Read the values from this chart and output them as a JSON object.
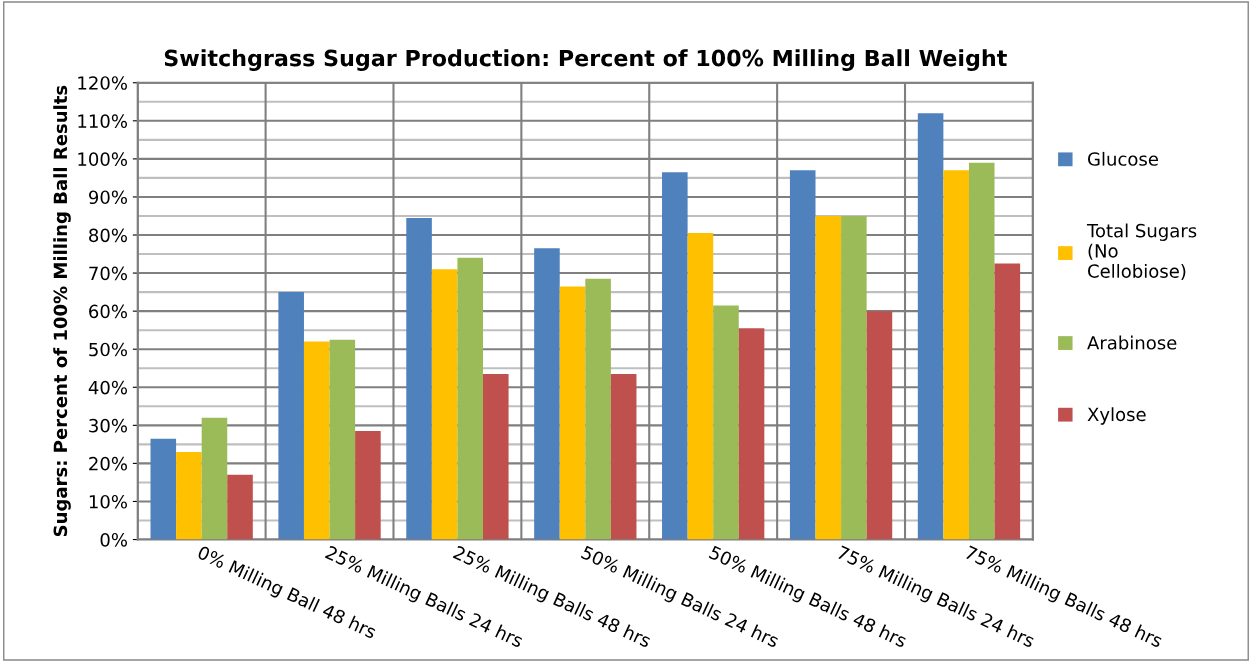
{
  "chart_data": {
    "type": "bar",
    "title": "Switchgrass Sugar Production: Percent of 100% Milling Ball Weight",
    "ylabel": "Sugars: Percent of 100% Milling Ball Results",
    "categories": [
      "0% Milling Ball 48 hrs",
      "25% Milling Balls 24 hrs",
      "25% Milling Balls 48 hrs",
      "50% Milling Balls 24 hrs",
      "50% Milling Balls 48 hrs",
      "75% Milling Balls 24 hrs",
      "75% Milling Balls 48 hrs"
    ],
    "series": [
      {
        "name": "Glucose",
        "color": "#4f81bd",
        "values": [
          26.5,
          65,
          84.5,
          76.5,
          96.5,
          97,
          112
        ]
      },
      {
        "name": "Total Sugars (No Cellobiose)",
        "color": "#ffc000",
        "values": [
          23,
          52,
          71,
          66.5,
          80.5,
          85,
          97
        ]
      },
      {
        "name": "Arabinose",
        "color": "#9bbb59",
        "values": [
          32,
          52.5,
          74,
          68.5,
          61.5,
          85,
          99
        ]
      },
      {
        "name": "Xylose",
        "color": "#c0504d",
        "values": [
          17,
          28.5,
          43.5,
          43.5,
          55.5,
          60,
          72.5
        ]
      }
    ],
    "ylim": [
      0,
      120
    ],
    "yticks": [
      {
        "value": 0,
        "label": "0%"
      },
      {
        "value": 5,
        "label": null
      },
      {
        "value": 10,
        "label": "10%"
      },
      {
        "value": 15,
        "label": null
      },
      {
        "value": 20,
        "label": "20%"
      },
      {
        "value": 25,
        "label": null
      },
      {
        "value": 30,
        "label": "30%"
      },
      {
        "value": 35,
        "label": null
      },
      {
        "value": 40,
        "label": "40%"
      },
      {
        "value": 45,
        "label": null
      },
      {
        "value": 50,
        "label": "50%"
      },
      {
        "value": 55,
        "label": null
      },
      {
        "value": 60,
        "label": "60%"
      },
      {
        "value": 65,
        "label": null
      },
      {
        "value": 70,
        "label": "70%"
      },
      {
        "value": 75,
        "label": null
      },
      {
        "value": 80,
        "label": "80%"
      },
      {
        "value": 85,
        "label": null
      },
      {
        "value": 90,
        "label": "90%"
      },
      {
        "value": 95,
        "label": null
      },
      {
        "value": 100,
        "label": "100%"
      },
      {
        "value": 105,
        "label": null
      },
      {
        "value": 110,
        "label": "110%"
      },
      {
        "value": 115,
        "label": null
      },
      {
        "value": 120,
        "label": "120%"
      }
    ],
    "grid": true,
    "legend": "right"
  }
}
